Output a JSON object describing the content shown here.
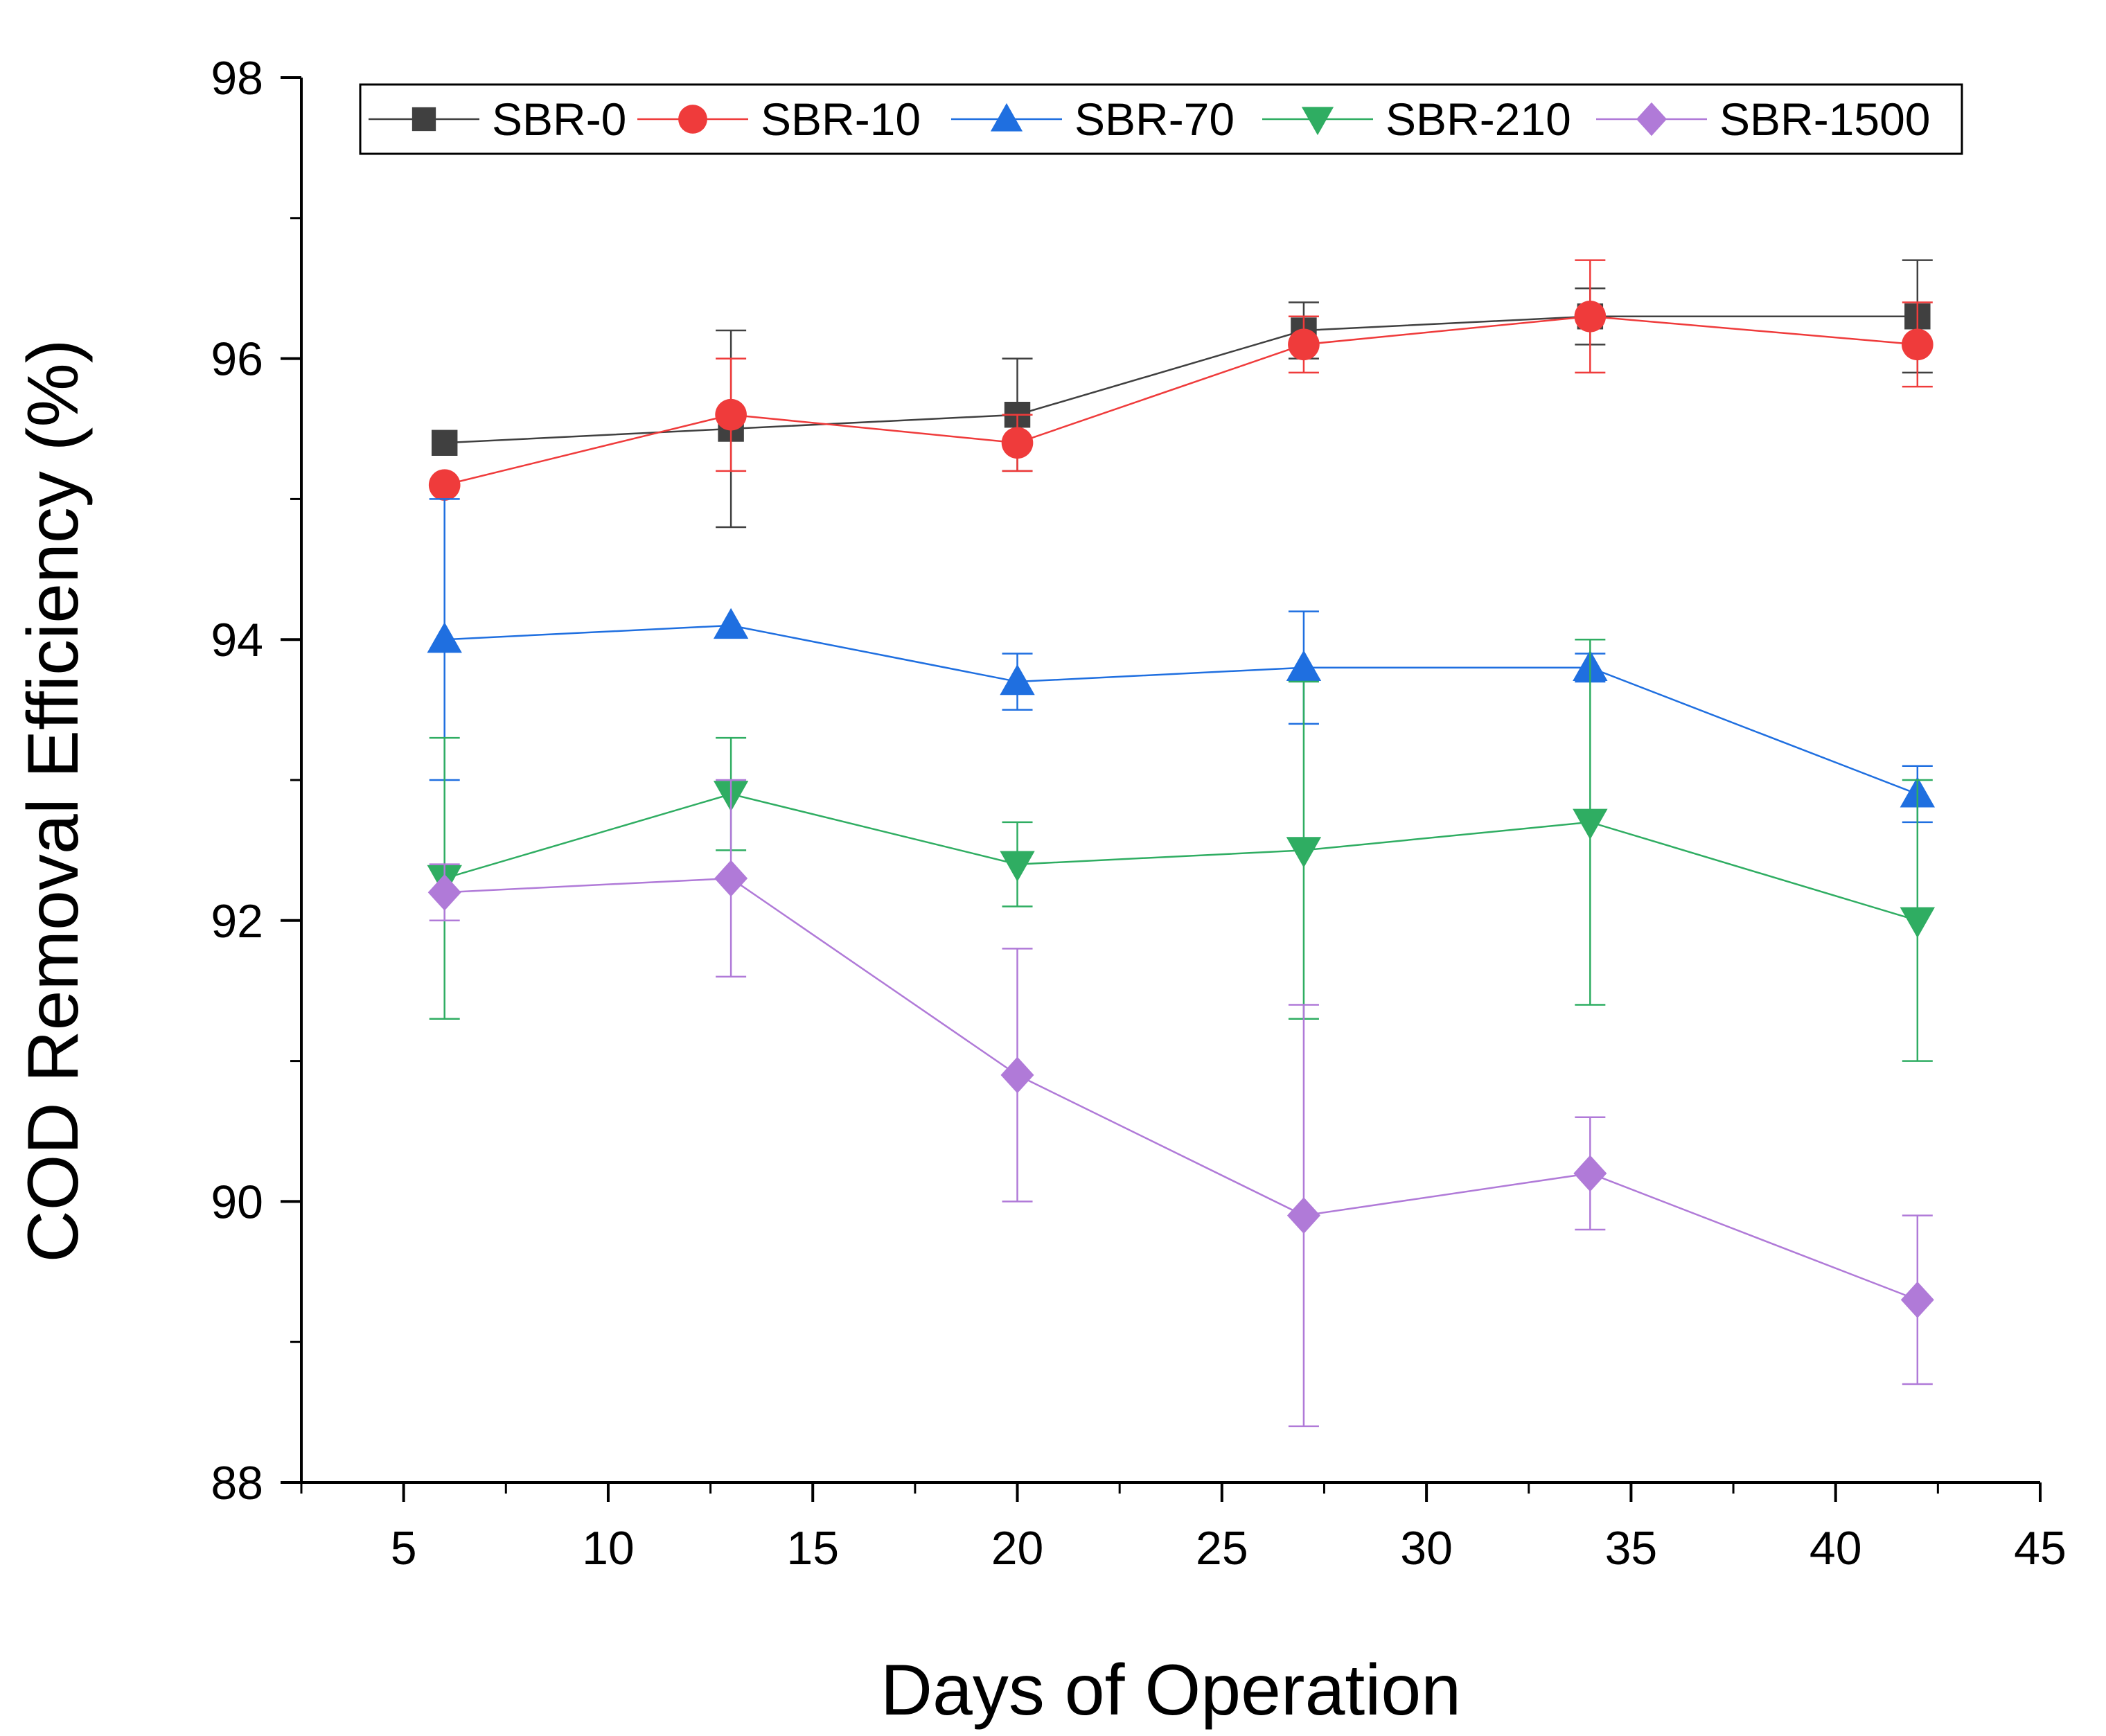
{
  "chart_data": {
    "type": "line",
    "title": "",
    "xlabel": "Days of Operation",
    "ylabel": "COD Removal Efficiency (%)",
    "xlim": [
      2.5,
      45
    ],
    "ylim": [
      88,
      98
    ],
    "xticks": [
      5,
      10,
      15,
      20,
      25,
      30,
      35,
      40,
      45
    ],
    "yticks": [
      88,
      90,
      92,
      94,
      96,
      98
    ],
    "x": [
      6,
      13,
      20,
      27,
      34,
      42
    ],
    "legend_position": "top",
    "series": [
      {
        "name": "SBR-0",
        "color": "#404040",
        "marker": "square",
        "values": [
          95.4,
          95.5,
          95.6,
          96.2,
          96.3,
          96.3
        ],
        "errors": [
          0,
          0.7,
          0.4,
          0.2,
          0.2,
          0.4
        ]
      },
      {
        "name": "SBR-10",
        "color": "#ef3b3b",
        "marker": "circle",
        "values": [
          95.1,
          95.6,
          95.4,
          96.1,
          96.3,
          96.1
        ],
        "errors": [
          0,
          0.4,
          0.2,
          0.2,
          0.4,
          0.3
        ]
      },
      {
        "name": "SBR-70",
        "color": "#1f6fe0",
        "marker": "triangle-up",
        "values": [
          94.0,
          94.1,
          93.7,
          93.8,
          93.8,
          92.9
        ],
        "errors": [
          1.0,
          0,
          0.2,
          0.4,
          0.1,
          0.2
        ]
      },
      {
        "name": "SBR-210",
        "color": "#2fad62",
        "marker": "triangle-down",
        "values": [
          92.3,
          92.9,
          92.4,
          92.5,
          92.7,
          92.0
        ],
        "errors": [
          1.0,
          0.4,
          0.3,
          1.2,
          1.3,
          1.0
        ]
      },
      {
        "name": "SBR-1500",
        "color": "#b07ad8",
        "marker": "diamond",
        "values": [
          92.2,
          92.3,
          90.9,
          89.9,
          90.2,
          89.3
        ],
        "errors": [
          0.2,
          0.7,
          0.9,
          1.5,
          0.4,
          0.6
        ]
      }
    ]
  }
}
